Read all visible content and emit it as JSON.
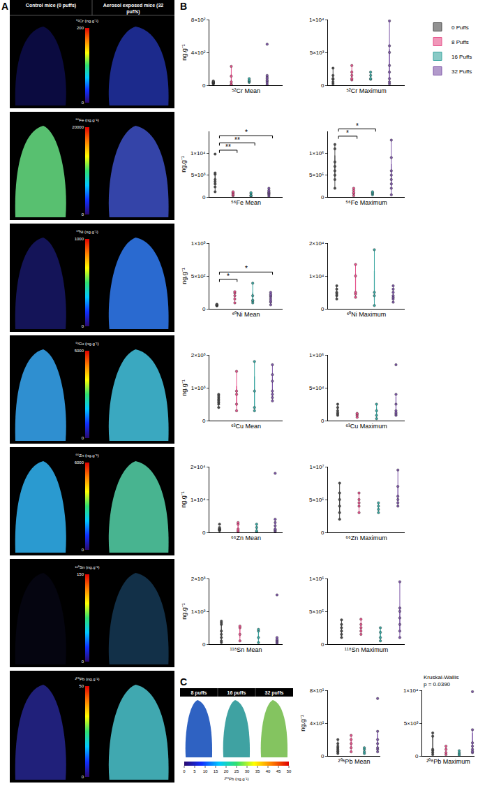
{
  "panel_labels": [
    "A",
    "B",
    "C"
  ],
  "images": {
    "headers": [
      "Control mice (0 puffs)",
      "Aerosol exposed mice (32 puffs)"
    ],
    "maps": [
      {
        "label": "⁵²Cr (ng.g⁻¹)",
        "range": [
          0,
          200
        ],
        "ticks": [
          0,
          200
        ]
      },
      {
        "label": "⁵⁶Fe (ng.g⁻¹)",
        "range": [
          0,
          20000
        ],
        "ticks": [
          0,
          20000
        ]
      },
      {
        "label": "⁶⁰Ni (ng.g⁻¹)",
        "range": [
          0,
          1000
        ],
        "ticks": [
          0,
          1000
        ]
      },
      {
        "label": "⁶³Cu (ng.g⁻¹)",
        "range": [
          0,
          5000
        ],
        "ticks": [
          0,
          5000
        ]
      },
      {
        "label": "⁶⁶Zn (ng.g⁻¹)",
        "range": [
          0,
          6000
        ],
        "ticks": [
          0,
          6000
        ]
      },
      {
        "label": "¹¹⁸Sn (ng.g⁻¹)",
        "range": [
          0,
          150
        ],
        "ticks": [
          0,
          150
        ]
      },
      {
        "label": "²⁰⁸Pb (ng.g⁻¹)",
        "range": [
          0,
          50
        ],
        "ticks": [
          0,
          50
        ]
      }
    ]
  },
  "panel_c": {
    "headers": [
      "8 puffs",
      "16 puffs",
      "32 puffs"
    ],
    "colorbar": {
      "label": "²⁰⁸Pb (ng.g⁻¹)",
      "range": [
        0,
        50
      ],
      "ticks": [
        0,
        5,
        10,
        15,
        20,
        25,
        30,
        35,
        40,
        45,
        50
      ]
    }
  },
  "chart_data": [
    {
      "type": "box",
      "x_label": "⁵²Cr Mean",
      "y_label": "ng.g⁻¹",
      "legend": "top right",
      "tick_labels": "y",
      "ylim": [
        0,
        800
      ],
      "yticks": [
        0,
        {
          "value": 400,
          "label": "4×10²"
        },
        {
          "value": 800,
          "label": "8×10²"
        }
      ],
      "series": [
        {
          "name": "0 Puffs",
          "color": "#4a4a4a",
          "values": [
            15,
            22,
            30,
            38,
            45,
            52,
            28,
            35
          ]
        },
        {
          "name": "8 Puffs",
          "color": "#e6528b",
          "values": [
            5,
            12,
            110,
            230,
            40
          ]
        },
        {
          "name": "16 Puffs",
          "color": "#3aa6a0",
          "values": [
            35,
            45,
            55,
            80,
            60
          ]
        },
        {
          "name": "32 Puffs",
          "color": "#7e57a8",
          "values": [
            10,
            30,
            50,
            60,
            80,
            100,
            120,
            500
          ]
        }
      ]
    },
    {
      "type": "box",
      "x_label": "⁵²Cr Maximum",
      "tick_labels": "y",
      "ylim": [
        0,
        10000
      ],
      "yticks": [
        0,
        {
          "value": 5000,
          "label": "5×10³"
        },
        {
          "value": 10000,
          "label": "1×10⁴"
        }
      ],
      "series": [
        {
          "name": "0 Puffs",
          "color": "#4a4a4a",
          "values": [
            200,
            500,
            900,
            1000,
            1500,
            2600
          ]
        },
        {
          "name": "8 Puffs",
          "color": "#e6528b",
          "values": [
            800,
            1000,
            1500,
            2000,
            3000
          ]
        },
        {
          "name": "16 Puffs",
          "color": "#3aa6a0",
          "values": [
            900,
            1000,
            1500,
            2000
          ]
        },
        {
          "name": "32 Puffs",
          "color": "#7e57a8",
          "values": [
            200,
            500,
            1000,
            2000,
            3000,
            5000,
            6000,
            9800
          ]
        }
      ]
    },
    {
      "type": "box",
      "x_label": "⁵⁶Fe Mean",
      "y_label": "ng.g⁻¹",
      "tick_labels": "y",
      "ylim": [
        0,
        15000
      ],
      "yticks": [
        0,
        {
          "value": 5000,
          "label": "5×10³"
        },
        {
          "value": 10000,
          "label": "1×10⁴"
        }
      ],
      "significance": [
        {
          "from": "0 Puffs",
          "to": "8 Puffs",
          "label": "**"
        },
        {
          "from": "0 Puffs",
          "to": "16 Puffs",
          "label": "**"
        },
        {
          "from": "0 Puffs",
          "to": "32 Puffs",
          "label": "*"
        }
      ],
      "series": [
        {
          "name": "0 Puffs",
          "color": "#4a4a4a",
          "values": [
            1200,
            2300,
            3000,
            3500,
            4000,
            5200,
            5500,
            9800
          ]
        },
        {
          "name": "8 Puffs",
          "color": "#e6528b",
          "values": [
            300,
            400,
            600,
            900,
            1000,
            1200
          ]
        },
        {
          "name": "16 Puffs",
          "color": "#3aa6a0",
          "values": [
            200,
            300,
            400,
            800,
            1000
          ]
        },
        {
          "name": "32 Puffs",
          "color": "#7e57a8",
          "values": [
            200,
            500,
            700,
            900,
            1000,
            1200,
            1500,
            2000
          ]
        }
      ]
    },
    {
      "type": "box",
      "x_label": "⁵⁶Fe Maximum",
      "tick_labels": "y",
      "ylim": [
        0,
        1500000
      ],
      "yticks": [
        0,
        {
          "value": 500000,
          "label": "5×10⁵"
        },
        {
          "value": 1000000,
          "label": "1×10⁶"
        }
      ],
      "significance": [
        {
          "from": "0 Puffs",
          "to": "8 Puffs",
          "label": "*"
        },
        {
          "from": "0 Puffs",
          "to": "16 Puffs",
          "label": "*"
        }
      ],
      "series": [
        {
          "name": "0 Puffs",
          "color": "#4a4a4a",
          "values": [
            200000,
            400000,
            500000,
            600000,
            700000,
            800000,
            1100000,
            1200000
          ]
        },
        {
          "name": "8 Puffs",
          "color": "#e6528b",
          "values": [
            30000,
            80000,
            100000,
            150000,
            200000
          ]
        },
        {
          "name": "16 Puffs",
          "color": "#3aa6a0",
          "values": [
            50000,
            80000,
            100000,
            120000
          ]
        },
        {
          "name": "32 Puffs",
          "color": "#7e57a8",
          "values": [
            50000,
            200000,
            300000,
            400000,
            500000,
            600000,
            900000,
            1300000
          ]
        }
      ]
    },
    {
      "type": "box",
      "x_label": "⁶⁰Ni Mean",
      "y_label": "ng.g⁻¹",
      "tick_labels": "y",
      "ylim": [
        0,
        1000
      ],
      "yticks": [
        0,
        {
          "value": 500,
          "label": "5×10²"
        },
        {
          "value": 1000,
          "label": "1×10³"
        }
      ],
      "significance": [
        {
          "from": "0 Puffs",
          "to": "8 Puffs",
          "label": "*"
        },
        {
          "from": "0 Puffs",
          "to": "32 Puffs",
          "label": "*"
        }
      ],
      "series": [
        {
          "name": "0 Puffs",
          "color": "#4a4a4a",
          "values": [
            45,
            50,
            55,
            58,
            60,
            62,
            70
          ]
        },
        {
          "name": "8 Puffs",
          "color": "#e6528b",
          "values": [
            90,
            150,
            200,
            240,
            260
          ]
        },
        {
          "name": "16 Puffs",
          "color": "#3aa6a0",
          "values": [
            90,
            120,
            130,
            200,
            390
          ]
        },
        {
          "name": "32 Puffs",
          "color": "#7e57a8",
          "values": [
            60,
            100,
            120,
            150,
            180,
            200,
            220,
            250
          ]
        }
      ]
    },
    {
      "type": "box",
      "x_label": "⁶⁰Ni Maximum",
      "tick_labels": "y",
      "ylim": [
        0,
        20000
      ],
      "yticks": [
        0,
        {
          "value": 10000,
          "label": "1×10⁴"
        },
        {
          "value": 20000,
          "label": "2×10⁴"
        }
      ],
      "series": [
        {
          "name": "0 Puffs",
          "color": "#4a4a4a",
          "values": [
            3000,
            4000,
            4500,
            5000,
            6000,
            7000
          ]
        },
        {
          "name": "8 Puffs",
          "color": "#e6528b",
          "values": [
            3500,
            4500,
            5000,
            10000,
            13500
          ]
        },
        {
          "name": "16 Puffs",
          "color": "#3aa6a0",
          "values": [
            1000,
            4000,
            5000,
            18000
          ]
        },
        {
          "name": "32 Puffs",
          "color": "#7e57a8",
          "values": [
            2000,
            3000,
            3500,
            4000,
            5000,
            6000,
            7000
          ]
        }
      ]
    },
    {
      "type": "box",
      "x_label": "⁶³Cu Mean",
      "y_label": "ng.g⁻¹",
      "tick_labels": "y",
      "ylim": [
        0,
        2000
      ],
      "yticks": [
        0,
        {
          "value": 1000,
          "label": "1×10³"
        },
        {
          "value": 2000,
          "label": "2×10³"
        }
      ],
      "series": [
        {
          "name": "0 Puffs",
          "color": "#4a4a4a",
          "values": [
            400,
            500,
            550,
            600,
            650,
            700,
            750,
            800
          ]
        },
        {
          "name": "8 Puffs",
          "color": "#e6528b",
          "values": [
            300,
            500,
            800,
            900,
            1500
          ]
        },
        {
          "name": "16 Puffs",
          "color": "#3aa6a0",
          "values": [
            300,
            400,
            900,
            1800
          ]
        },
        {
          "name": "32 Puffs",
          "color": "#7e57a8",
          "values": [
            600,
            700,
            800,
            900,
            1200,
            1400,
            1700
          ]
        }
      ]
    },
    {
      "type": "box",
      "x_label": "⁶³Cu Maximum",
      "tick_labels": "y",
      "ylim": [
        0,
        100000
      ],
      "yticks": [
        0,
        {
          "value": 50000,
          "label": "5×10⁴"
        },
        {
          "value": 100000,
          "label": "1×10⁵"
        }
      ],
      "series": [
        {
          "name": "0 Puffs",
          "color": "#4a4a4a",
          "values": [
            8000,
            10000,
            12000,
            15000,
            20000,
            25000
          ]
        },
        {
          "name": "8 Puffs",
          "color": "#e6528b",
          "values": [
            5000,
            8000,
            10000,
            11000
          ]
        },
        {
          "name": "16 Puffs",
          "color": "#3aa6a0",
          "values": [
            3000,
            8000,
            15000,
            25000
          ]
        },
        {
          "name": "32 Puffs",
          "color": "#7e57a8",
          "values": [
            8000,
            10000,
            12000,
            15000,
            25000,
            40000,
            85000
          ]
        }
      ]
    },
    {
      "type": "box",
      "x_label": "⁶⁶Zn Mean",
      "y_label": "ng.g⁻¹",
      "tick_labels": "y",
      "ylim": [
        0,
        20000
      ],
      "yticks": [
        0,
        {
          "value": 10000,
          "label": "1×10⁴"
        },
        {
          "value": 20000,
          "label": "2×10⁴"
        }
      ],
      "series": [
        {
          "name": "0 Puffs",
          "color": "#4a4a4a",
          "values": [
            500,
            700,
            800,
            900,
            1000,
            1200,
            1500,
            2500
          ]
        },
        {
          "name": "8 Puffs",
          "color": "#e6528b",
          "values": [
            300,
            500,
            1000,
            2500,
            3000
          ]
        },
        {
          "name": "16 Puffs",
          "color": "#3aa6a0",
          "values": [
            200,
            500,
            1500,
            2500
          ]
        },
        {
          "name": "32 Puffs",
          "color": "#7e57a8",
          "values": [
            300,
            500,
            800,
            1000,
            2000,
            3000,
            4000,
            18000
          ]
        }
      ]
    },
    {
      "type": "box",
      "x_label": "⁶⁶Zn Maximum",
      "tick_labels": "y",
      "ylim": [
        0,
        10000000
      ],
      "yticks": [
        0,
        {
          "value": 5000000,
          "label": "5×10⁶"
        },
        {
          "value": 10000000,
          "label": "1×10⁷"
        }
      ],
      "series": [
        {
          "name": "0 Puffs",
          "color": "#4a4a4a",
          "values": [
            2000000,
            3000000,
            4000000,
            5000000,
            6000000,
            7500000
          ]
        },
        {
          "name": "8 Puffs",
          "color": "#e6528b",
          "values": [
            3000000,
            4000000,
            4500000,
            5000000,
            6000000
          ]
        },
        {
          "name": "16 Puffs",
          "color": "#3aa6a0",
          "values": [
            3000000,
            3500000,
            4000000,
            4500000
          ]
        },
        {
          "name": "32 Puffs",
          "color": "#7e57a8",
          "values": [
            4000000,
            4500000,
            5000000,
            5500000,
            7000000,
            9500000
          ]
        }
      ]
    },
    {
      "type": "box",
      "x_label": "¹¹⁸Sn Mean",
      "y_label": "ng.g⁻¹",
      "tick_labels": "y",
      "ylim": [
        0,
        2000
      ],
      "yticks": [
        0,
        {
          "value": 1000,
          "label": "1×10³"
        },
        {
          "value": 2000,
          "label": "2×10³"
        }
      ],
      "series": [
        {
          "name": "0 Puffs",
          "color": "#4a4a4a",
          "values": [
            50,
            100,
            200,
            300,
            400,
            600,
            650,
            700
          ]
        },
        {
          "name": "8 Puffs",
          "color": "#e6528b",
          "values": [
            100,
            300,
            500,
            550
          ]
        },
        {
          "name": "16 Puffs",
          "color": "#3aa6a0",
          "values": [
            50,
            200,
            400,
            450
          ]
        },
        {
          "name": "32 Puffs",
          "color": "#7e57a8",
          "values": [
            20,
            50,
            80,
            100,
            120,
            150,
            200,
            1500
          ]
        }
      ]
    },
    {
      "type": "box",
      "x_label": "¹¹⁸Sn Maximum",
      "tick_labels": "y",
      "ylim": [
        0,
        1000000
      ],
      "yticks": [
        0,
        {
          "value": 500000,
          "label": "5×10⁵"
        },
        {
          "value": 1000000,
          "label": "1×10⁶"
        }
      ],
      "series": [
        {
          "name": "0 Puffs",
          "color": "#4a4a4a",
          "values": [
            100000,
            150000,
            200000,
            250000,
            300000,
            370000
          ]
        },
        {
          "name": "8 Puffs",
          "color": "#e6528b",
          "values": [
            150000,
            200000,
            250000,
            300000,
            380000
          ]
        },
        {
          "name": "16 Puffs",
          "color": "#3aa6a0",
          "values": [
            50000,
            100000,
            180000,
            250000
          ]
        },
        {
          "name": "32 Puffs",
          "color": "#7e57a8",
          "values": [
            100000,
            200000,
            300000,
            400000,
            500000,
            550000,
            950000
          ]
        }
      ]
    },
    {
      "type": "box",
      "x_label": "²⁰⁸Pb Mean",
      "y_label": "ng.g⁻¹",
      "tick_labels": "y",
      "ylim": [
        0,
        80
      ],
      "yticks": [
        0,
        {
          "value": 40,
          "label": "4×10¹"
        },
        {
          "value": 80,
          "label": "8×10¹"
        }
      ],
      "series": [
        {
          "name": "0 Puffs",
          "color": "#4a4a4a",
          "values": [
            3,
            5,
            6,
            8,
            10,
            12,
            15,
            20
          ]
        },
        {
          "name": "8 Puffs",
          "color": "#e6528b",
          "values": [
            5,
            10,
            15,
            20,
            25
          ]
        },
        {
          "name": "16 Puffs",
          "color": "#3aa6a0",
          "values": [
            3,
            5,
            8,
            10
          ]
        },
        {
          "name": "32 Puffs",
          "color": "#7e57a8",
          "values": [
            5,
            8,
            10,
            15,
            20,
            30,
            70
          ]
        }
      ]
    },
    {
      "type": "box",
      "x_label": "²⁰⁸Pb Maximum",
      "tick_labels": "y",
      "ylim": [
        0,
        10000
      ],
      "yticks": [
        0,
        {
          "value": 5000,
          "label": "5×10³"
        },
        {
          "value": 10000,
          "label": "1×10⁴"
        }
      ],
      "annotations": [
        "Kruskal-Wallis",
        "p = 0.0390"
      ],
      "series": [
        {
          "name": "0 Puffs",
          "color": "#4a4a4a",
          "values": [
            200,
            500,
            800,
            1000,
            3000,
            3500
          ]
        },
        {
          "name": "8 Puffs",
          "color": "#e6528b",
          "values": [
            200,
            500,
            1000,
            1500
          ]
        },
        {
          "name": "16 Puffs",
          "color": "#3aa6a0",
          "values": [
            100,
            300,
            500,
            800
          ]
        },
        {
          "name": "32 Puffs",
          "color": "#7e57a8",
          "values": [
            500,
            700,
            1000,
            1500,
            2000,
            4000,
            9800
          ]
        }
      ]
    }
  ]
}
